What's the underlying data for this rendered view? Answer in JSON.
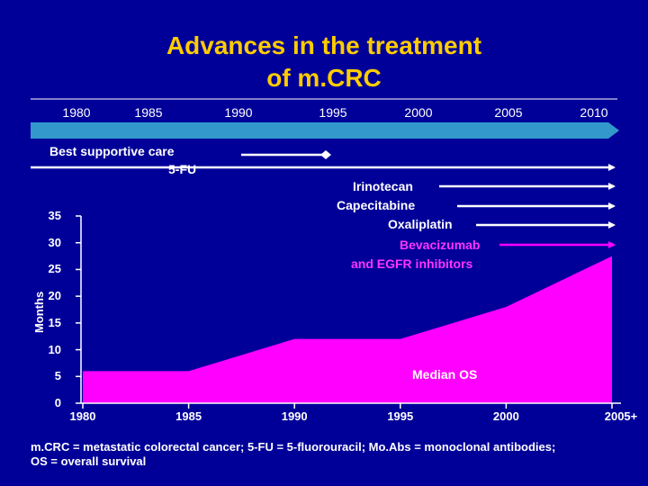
{
  "title_line1": "Advances in the treatment",
  "title_line2": "of m.CRC",
  "timeline": {
    "years": [
      "1980",
      "1985",
      "1990",
      "1995",
      "2000",
      "2005",
      "2010"
    ],
    "color": "#3399CC"
  },
  "treatments": [
    {
      "label": "Best supportive care",
      "color": "#FFFFFF"
    },
    {
      "label": "5-FU",
      "color": "#FFFFFF"
    },
    {
      "label": "Irinotecan",
      "color": "#FFFFFF"
    },
    {
      "label": "Capecitabine",
      "color": "#FFFFFF"
    },
    {
      "label": "Oxaliplatin",
      "color": "#FFFFFF"
    },
    {
      "label": "Bevacizumab",
      "color": "#FF33FF"
    },
    {
      "label": "and EGFR inhibitors",
      "color": "#FF33FF"
    }
  ],
  "chart_data": {
    "type": "area",
    "x": [
      1980,
      1985,
      1990,
      1995,
      2000,
      2005
    ],
    "values": [
      6,
      6,
      12,
      12,
      18,
      27.5
    ],
    "xticklabels": [
      "1980",
      "1985",
      "1990",
      "1995",
      "2000",
      "2005+"
    ],
    "yticks": [
      0,
      5,
      10,
      15,
      20,
      25,
      30,
      35
    ],
    "ylim": [
      0,
      35
    ],
    "xlim": [
      1980,
      2005
    ],
    "ylabel": "Months",
    "annotation": "Median OS",
    "fill_color": "#FF00FF"
  },
  "footnote_line1": "m.CRC = metastatic colorectal cancer; 5-FU = 5-fluorouracil; Mo.Abs = monoclonal antibodies;",
  "footnote_line2": "OS = overall survival"
}
